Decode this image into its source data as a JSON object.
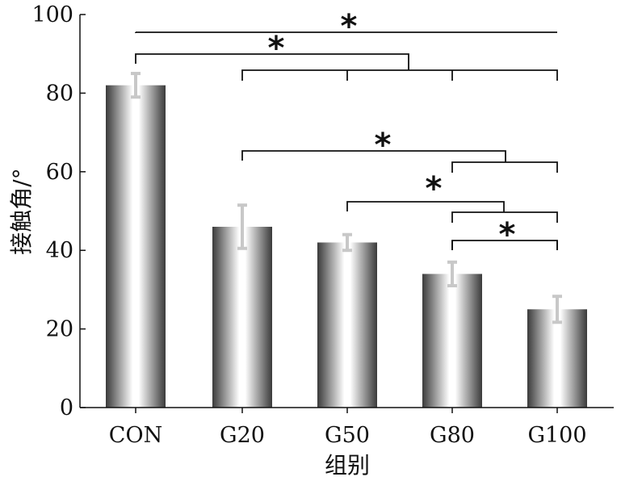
{
  "chart_data": {
    "type": "bar",
    "title": "",
    "xlabel": "组别",
    "ylabel": "接触角/°",
    "ylim": [
      0,
      100
    ],
    "yticks": [
      "0",
      "20",
      "40",
      "60",
      "80",
      "100"
    ],
    "categories": [
      "CON",
      "G20",
      "G50",
      "G80",
      "G100"
    ],
    "values": [
      82,
      46,
      42,
      34,
      25
    ],
    "errors": [
      3,
      5.5,
      2,
      3,
      3.3
    ],
    "significance": [
      {
        "from": "CON",
        "to": [
          "G100"
        ],
        "label": "*"
      },
      {
        "from": "CON",
        "to": [
          "G20",
          "G50",
          "G80",
          "G100"
        ],
        "label": "*"
      },
      {
        "from": "G20",
        "to": [
          "G80",
          "G100"
        ],
        "label": "*"
      },
      {
        "from": "G50",
        "to": [
          "G80",
          "G100"
        ],
        "label": "*"
      },
      {
        "from": "G80",
        "to": [
          "G100"
        ],
        "label": "*"
      }
    ],
    "colors": {
      "bar_edge": "#3a3a3a",
      "bar_center": "#ffffff",
      "error_bar": "#c8c8c8",
      "axis": "#111111"
    }
  }
}
